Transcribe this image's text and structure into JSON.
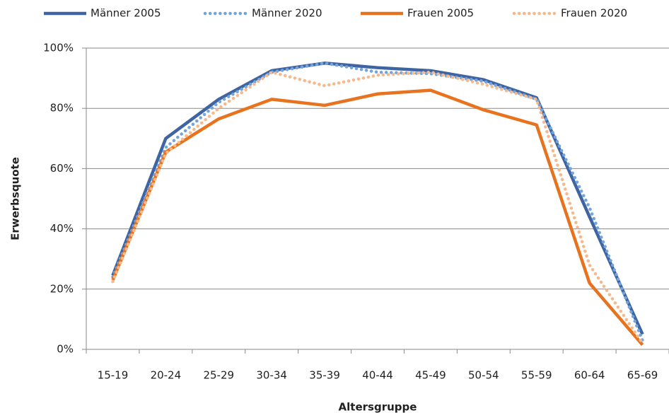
{
  "chart_data": {
    "type": "line",
    "x_label": "Altersgruppe",
    "y_label": "Erwerbsquote",
    "categories": [
      "15-19",
      "20-24",
      "25-29",
      "30-34",
      "35-39",
      "40-44",
      "45-49",
      "50-54",
      "55-59",
      "60-64",
      "65-69"
    ],
    "series": [
      {
        "name": "Männer 2005",
        "color": "#3f64a2",
        "style": "solid",
        "values": [
          24.5,
          70,
          83,
          92.5,
          95,
          93.5,
          92.5,
          89.5,
          83.5,
          44,
          5
        ]
      },
      {
        "name": "Männer 2020",
        "color": "#74a4dc",
        "style": "dotted",
        "values": [
          24,
          67,
          82,
          92,
          95,
          92,
          91.5,
          89,
          83,
          47,
          3
        ]
      },
      {
        "name": "Frauen 2005",
        "color": "#e8731e",
        "style": "solid",
        "values": [
          23,
          65.5,
          76.5,
          83,
          81,
          84.8,
          86,
          79.5,
          74.5,
          22,
          1.5
        ]
      },
      {
        "name": "Frauen 2020",
        "color": "#f7b98c",
        "style": "dotted",
        "values": [
          22.5,
          65,
          80,
          92,
          87.5,
          91,
          92,
          88,
          83,
          28,
          2
        ]
      }
    ],
    "ylim": [
      0,
      100
    ],
    "yticks": [
      {
        "value": 0,
        "label": "0%"
      },
      {
        "value": 20,
        "label": "20%"
      },
      {
        "value": 40,
        "label": "40%"
      },
      {
        "value": 60,
        "label": "60%"
      },
      {
        "value": 80,
        "label": "80%"
      },
      {
        "value": 100,
        "label": "100%"
      }
    ],
    "grid": true,
    "legend": "top"
  }
}
